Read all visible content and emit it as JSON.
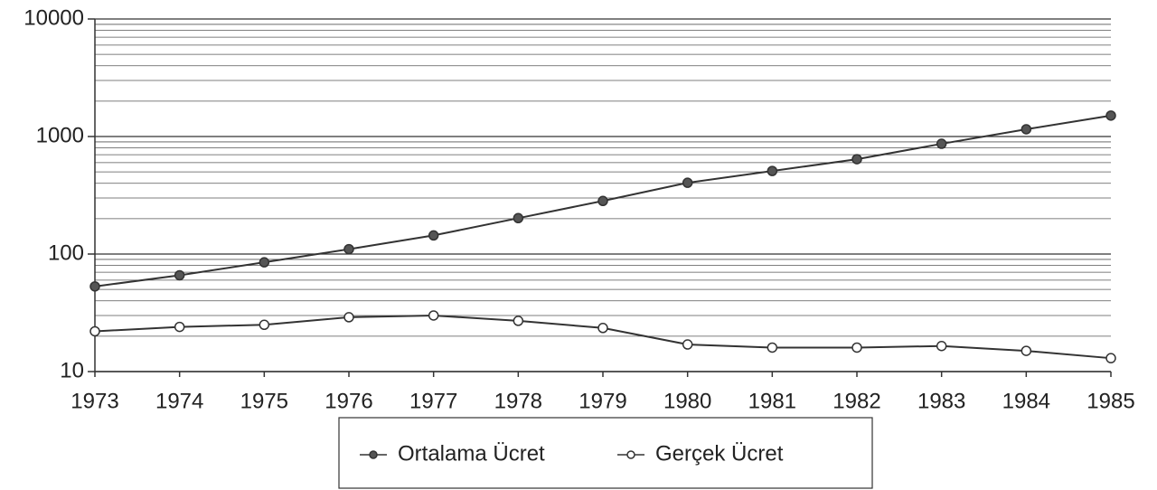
{
  "chart_data": {
    "type": "line",
    "categories": [
      "1973",
      "1974",
      "1975",
      "1976",
      "1977",
      "1978",
      "1979",
      "1980",
      "1981",
      "1982",
      "1983",
      "1984",
      "1985"
    ],
    "series": [
      {
        "name": "Ortalama Ücret",
        "color": "#333333",
        "marker": "filled",
        "values": [
          53,
          66,
          85,
          110,
          144,
          202,
          283,
          404,
          509,
          641,
          867,
          1153,
          1507
        ]
      },
      {
        "name": "Gerçek Ücret",
        "color": "#333333",
        "marker": "open",
        "values": [
          22,
          24,
          25,
          29,
          30,
          27,
          23.5,
          17,
          16,
          16,
          16.5,
          15,
          13
        ]
      }
    ],
    "ylim": [
      10,
      10000
    ],
    "yticks": [
      10,
      100,
      1000,
      10000
    ],
    "log_scale": true,
    "grid": true,
    "minor_grid": true,
    "legend": "bottom"
  }
}
